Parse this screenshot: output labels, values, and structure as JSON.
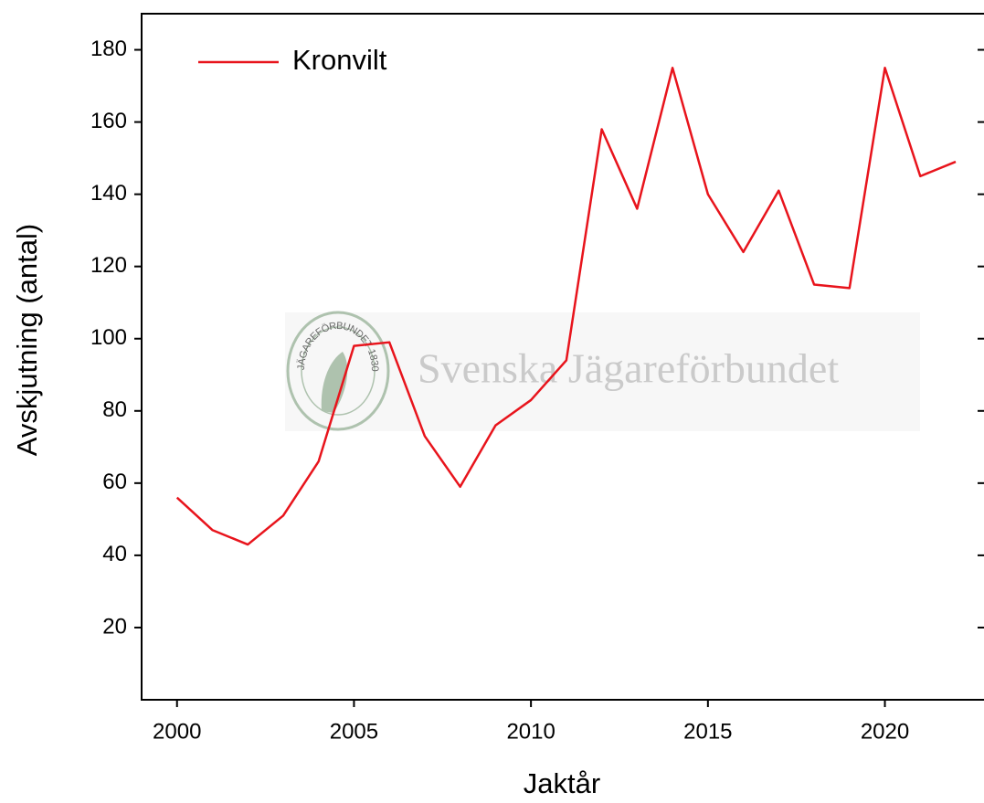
{
  "chart_data": {
    "type": "line",
    "xlabel": "Jaktår",
    "ylabel": "Avskjutning (antal)",
    "watermark": "Svenska Jägareförbundet",
    "logo_text": "JÄGAREFÖRBUNDET 1830",
    "x": [
      2000,
      2001,
      2002,
      2003,
      2004,
      2005,
      2006,
      2007,
      2008,
      2009,
      2010,
      2011,
      2012,
      2013,
      2014,
      2015,
      2016,
      2017,
      2018,
      2019,
      2020,
      2021,
      2022
    ],
    "series": [
      {
        "name": "Kronvilt",
        "color": "#e8141c",
        "values": [
          56,
          47,
          43,
          51,
          66,
          98,
          99,
          73,
          59,
          76,
          83,
          94,
          158,
          136,
          175,
          140,
          124,
          141,
          115,
          114,
          175,
          145,
          149
        ]
      }
    ],
    "xlim": [
      1999,
      2022.8
    ],
    "xticks": [
      2000,
      2005,
      2010,
      2015,
      2020
    ],
    "ylim": [
      0,
      190
    ],
    "yticks": [
      20,
      40,
      60,
      80,
      100,
      120,
      140,
      160,
      180
    ],
    "legend": "upper left"
  }
}
